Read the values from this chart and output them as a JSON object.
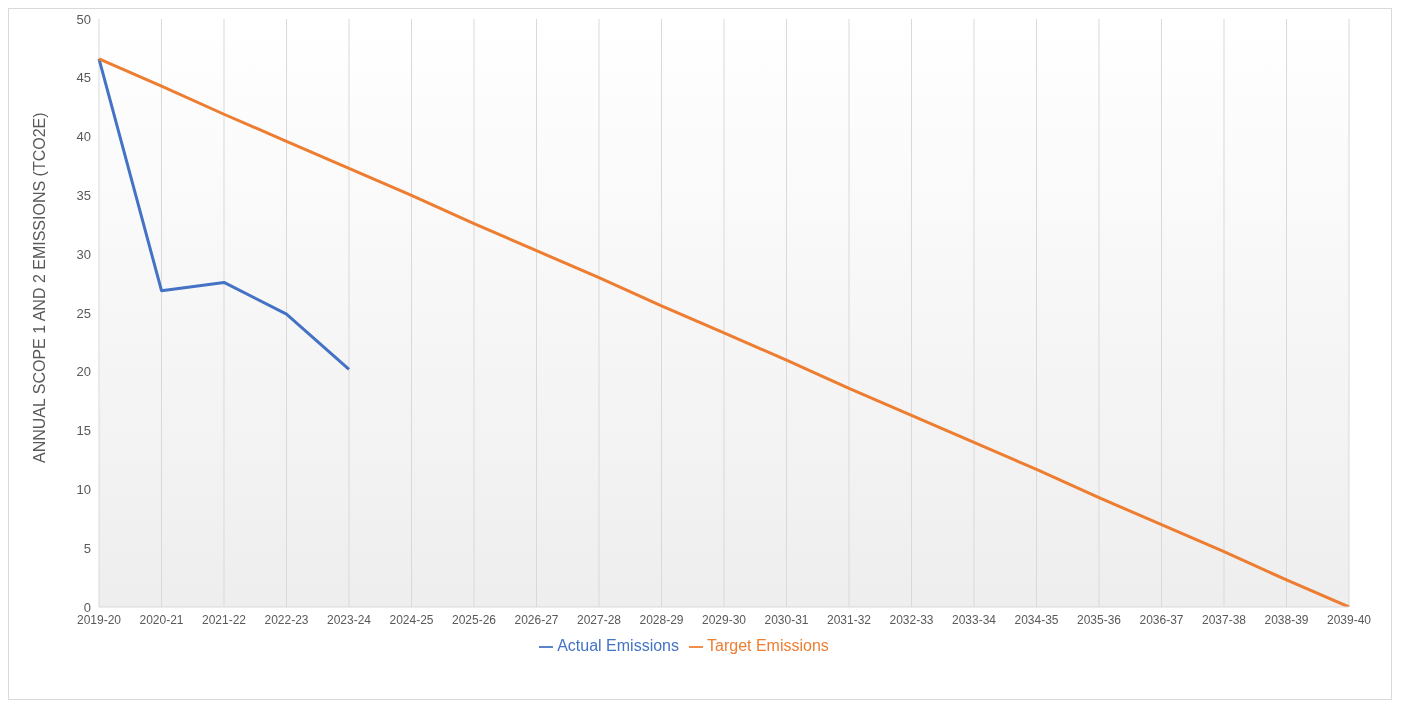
{
  "chart_data": {
    "type": "line",
    "ylabel": "ANNUAL SCOPE  1 AND 2 EMISSIONS (TCO2E)",
    "categories": [
      "2019-20",
      "2020-21",
      "2021-22",
      "2022-23",
      "2023-24",
      "2024-25",
      "2025-26",
      "2026-27",
      "2027-28",
      "2028-29",
      "2029-30",
      "2030-31",
      "2031-32",
      "2032-33",
      "2033-34",
      "2034-35",
      "2035-36",
      "2036-37",
      "2037-38",
      "2038-39",
      "2039-40"
    ],
    "series": [
      {
        "name": "Actual Emissions",
        "color": "#4472c4",
        "values": [
          46.6,
          26.9,
          27.6,
          24.9,
          20.2,
          null,
          null,
          null,
          null,
          null,
          null,
          null,
          null,
          null,
          null,
          null,
          null,
          null,
          null,
          null,
          null
        ]
      },
      {
        "name": "Target Emissions",
        "color": "#ed7d31",
        "values": [
          46.6,
          44.3,
          41.9,
          39.6,
          37.3,
          35.0,
          32.6,
          30.3,
          28.0,
          25.6,
          23.3,
          21.0,
          18.6,
          16.3,
          14.0,
          11.7,
          9.3,
          7.0,
          4.7,
          2.3,
          0
        ]
      }
    ],
    "ylim": [
      0,
      50
    ],
    "yticks": [
      0,
      5,
      10,
      15,
      20,
      25,
      30,
      35,
      40,
      45,
      50
    ],
    "grid": "x",
    "legend": "bottom",
    "marker": "none",
    "line_style": "solid"
  }
}
